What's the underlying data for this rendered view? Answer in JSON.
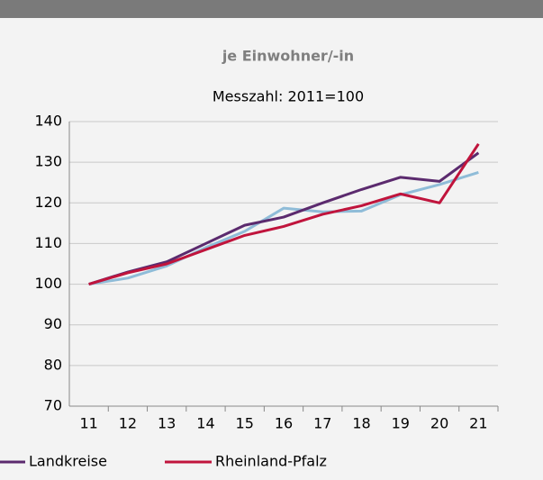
{
  "chart_data": {
    "type": "line",
    "title": "je Einwohner/-in",
    "subtitle": "Messzahl: 2011=100",
    "categories": [
      "11",
      "12",
      "13",
      "14",
      "15",
      "16",
      "17",
      "18",
      "19",
      "20",
      "21"
    ],
    "series": [
      {
        "color": "#8fbcd8",
        "values": [
          100,
          101.5,
          104.5,
          109,
          113,
          118.7,
          117.8,
          118,
          122,
          124.5,
          127.5
        ]
      },
      {
        "name": "Landkreise",
        "color": "#5b2a6e",
        "values": [
          100,
          103,
          105.5,
          110,
          114.5,
          116.5,
          120,
          123.3,
          126.3,
          125.3,
          132.3
        ]
      },
      {
        "name": "Rheinland-Pfalz",
        "color": "#c0143c",
        "values": [
          100,
          102.8,
          105,
          108.5,
          112,
          114.2,
          117.2,
          119.3,
          122.2,
          120,
          134.5
        ]
      }
    ],
    "ylim": [
      70,
      140
    ],
    "yticks": [
      70,
      80,
      90,
      100,
      110,
      120,
      130,
      140
    ],
    "grid": true
  }
}
